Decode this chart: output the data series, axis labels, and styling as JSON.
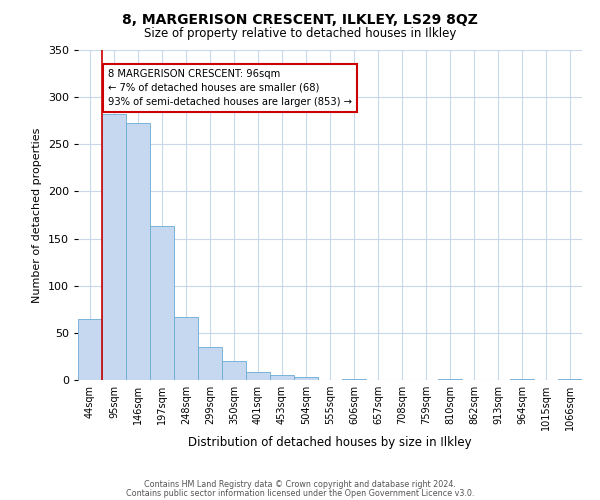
{
  "title": "8, MARGERISON CRESCENT, ILKLEY, LS29 8QZ",
  "subtitle": "Size of property relative to detached houses in Ilkley",
  "xlabel": "Distribution of detached houses by size in Ilkley",
  "ylabel": "Number of detached properties",
  "bin_labels": [
    "44sqm",
    "95sqm",
    "146sqm",
    "197sqm",
    "248sqm",
    "299sqm",
    "350sqm",
    "401sqm",
    "453sqm",
    "504sqm",
    "555sqm",
    "606sqm",
    "657sqm",
    "708sqm",
    "759sqm",
    "810sqm",
    "862sqm",
    "913sqm",
    "964sqm",
    "1015sqm",
    "1066sqm"
  ],
  "bar_values": [
    65,
    282,
    273,
    163,
    67,
    35,
    20,
    9,
    5,
    3,
    0,
    1,
    0,
    0,
    0,
    1,
    0,
    0,
    1,
    0,
    1
  ],
  "bar_color": "#c5d8f0",
  "bar_edge_color": "#6aaad4",
  "property_line_color": "#cc0000",
  "annotation_text": "8 MARGERISON CRESCENT: 96sqm\n← 7% of detached houses are smaller (68)\n93% of semi-detached houses are larger (853) →",
  "annotation_box_color": "#ffffff",
  "annotation_box_edge_color": "#cc0000",
  "ylim": [
    0,
    350
  ],
  "yticks": [
    0,
    50,
    100,
    150,
    200,
    250,
    300,
    350
  ],
  "footer_line1": "Contains HM Land Registry data © Crown copyright and database right 2024.",
  "footer_line2": "Contains public sector information licensed under the Open Government Licence v3.0.",
  "background_color": "#ffffff",
  "grid_color": "#c8d8e8"
}
